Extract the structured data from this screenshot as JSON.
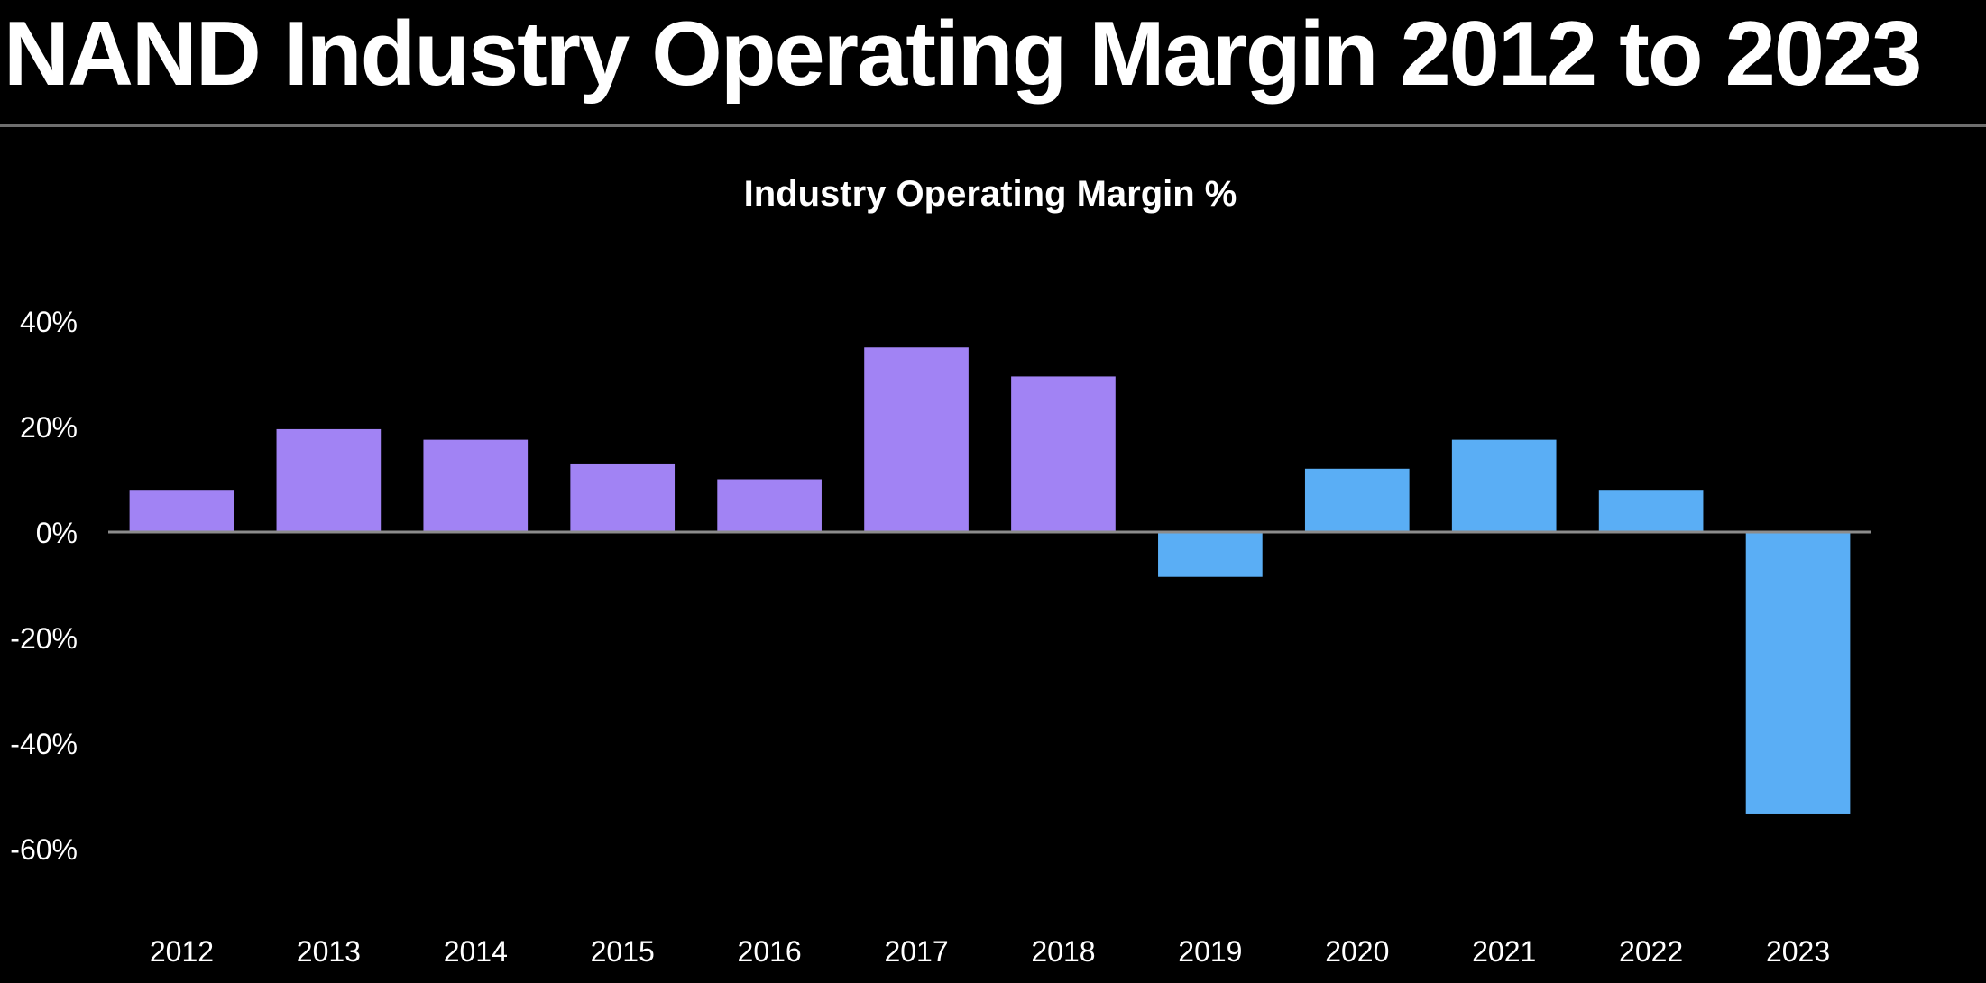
{
  "slide": {
    "title": "NAND Industry Operating Margin 2012 to 2023"
  },
  "colors": {
    "background": "#000000",
    "text": "#ffffff",
    "baseline": "#8c8c8c",
    "rule": "#6e6e6e",
    "series_purple": "#a183f4",
    "series_blue": "#5aaef5"
  },
  "chart_data": {
    "type": "bar",
    "title": "Industry Operating Margin %",
    "xlabel": "",
    "ylabel": "",
    "ylim": [
      -60,
      40
    ],
    "yticks": [
      40,
      20,
      0,
      -20,
      -40,
      -60
    ],
    "ytick_labels": [
      "40%",
      "20%",
      "0%",
      "-20%",
      "-40%",
      "-60%"
    ],
    "grid": false,
    "legend": "none",
    "categories": [
      "2012",
      "2013",
      "2014",
      "2015",
      "2016",
      "2017",
      "2018",
      "2019",
      "2020",
      "2021",
      "2022",
      "2023"
    ],
    "values": [
      8,
      19.5,
      17.5,
      13,
      10,
      35,
      29.5,
      -8.5,
      12,
      17.5,
      8,
      -53.5
    ],
    "bar_colors": [
      "#a183f4",
      "#a183f4",
      "#a183f4",
      "#a183f4",
      "#a183f4",
      "#a183f4",
      "#a183f4",
      "#5aaef5",
      "#5aaef5",
      "#5aaef5",
      "#5aaef5",
      "#5aaef5"
    ]
  }
}
